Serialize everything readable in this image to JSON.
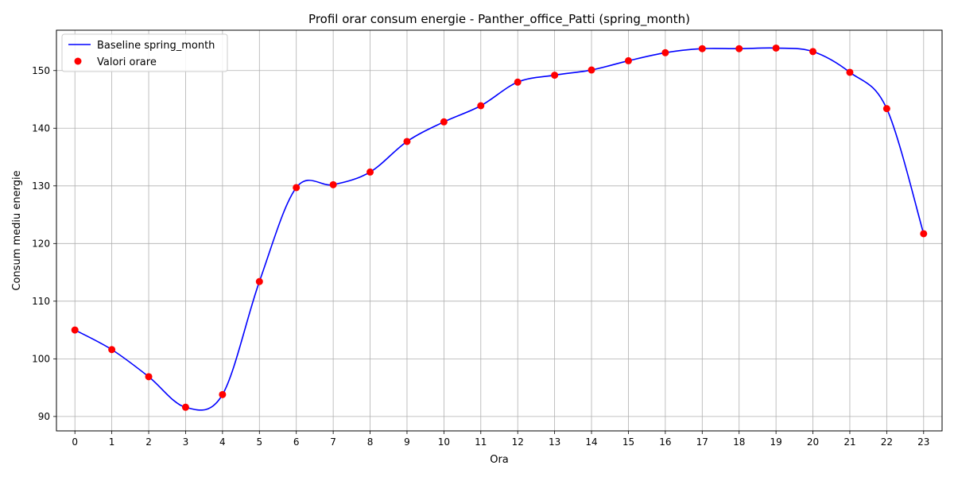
{
  "chart_data": {
    "type": "line",
    "title": "Profil orar consum energie - Panther_office_Patti (spring_month)",
    "xlabel": "Ora",
    "ylabel": "Consum mediu energie",
    "x": [
      0,
      1,
      2,
      3,
      4,
      5,
      6,
      7,
      8,
      9,
      10,
      11,
      12,
      13,
      14,
      15,
      16,
      17,
      18,
      19,
      20,
      21,
      22,
      23
    ],
    "xlim": [
      -0.5,
      23.5
    ],
    "ylim": [
      87.5,
      157.0
    ],
    "yticks": [
      90,
      100,
      110,
      120,
      130,
      140,
      150
    ],
    "grid": true,
    "legend_position": "top-left",
    "series": [
      {
        "name": "Baseline spring_month",
        "kind": "line",
        "color": "#0000ff",
        "values": [
          105.0,
          101.6,
          96.9,
          91.6,
          93.8,
          113.4,
          129.7,
          130.2,
          132.4,
          137.7,
          141.1,
          143.9,
          148.0,
          149.2,
          150.1,
          151.7,
          153.1,
          153.8,
          153.8,
          153.9,
          153.3,
          149.7,
          143.4,
          121.7
        ]
      },
      {
        "name": "Valori orare",
        "kind": "scatter",
        "color": "#ff0000",
        "values": [
          105.0,
          101.6,
          96.9,
          91.6,
          93.8,
          113.4,
          129.7,
          130.2,
          132.4,
          137.7,
          141.1,
          143.9,
          148.0,
          149.2,
          150.1,
          151.7,
          153.1,
          153.8,
          153.8,
          153.9,
          153.3,
          149.7,
          143.4,
          121.7
        ]
      }
    ]
  }
}
